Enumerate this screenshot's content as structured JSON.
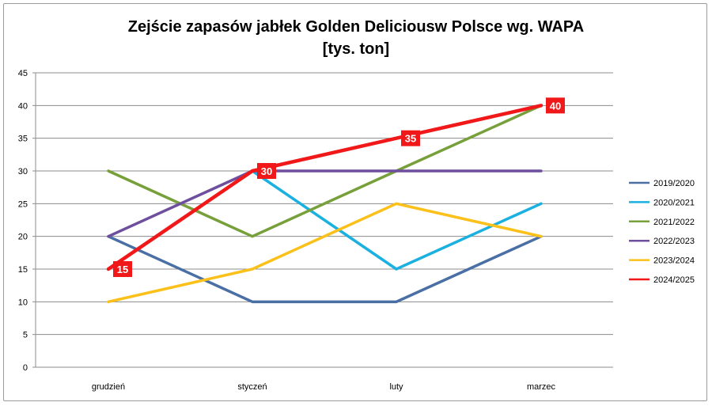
{
  "chart_data": {
    "type": "line",
    "title_line1": "Zejście zapasów jabłek Golden Deliciousw Polsce wg. WAPA",
    "title_line2": "[tys. ton]",
    "xlabel": "",
    "ylabel": "",
    "categories": [
      "grudzień",
      "styczeń",
      "luty",
      "marzec"
    ],
    "ylim": [
      0,
      45
    ],
    "yticks": [
      0,
      5,
      10,
      15,
      20,
      25,
      30,
      35,
      40,
      45
    ],
    "grid": true,
    "legend_position": "right",
    "series": [
      {
        "name": "2019/2020",
        "color": "#4a6fa5",
        "values": [
          20,
          10,
          10,
          20
        ]
      },
      {
        "name": "2020/2021",
        "color": "#1ab0e0",
        "values": [
          null,
          30,
          15,
          25
        ]
      },
      {
        "name": "2021/2022",
        "color": "#77a03b",
        "values": [
          30,
          20,
          30,
          40
        ]
      },
      {
        "name": "2022/2023",
        "color": "#6e4f9e",
        "values": [
          20,
          30,
          30,
          30
        ]
      },
      {
        "name": "2023/2024",
        "color": "#fbc01a",
        "values": [
          10,
          15,
          25,
          20
        ]
      },
      {
        "name": "2024/2025",
        "color": "#f01818",
        "values": [
          15,
          30,
          35,
          40
        ],
        "labeled": true
      }
    ],
    "data_labels": [
      "15",
      "30",
      "35",
      "40"
    ]
  }
}
